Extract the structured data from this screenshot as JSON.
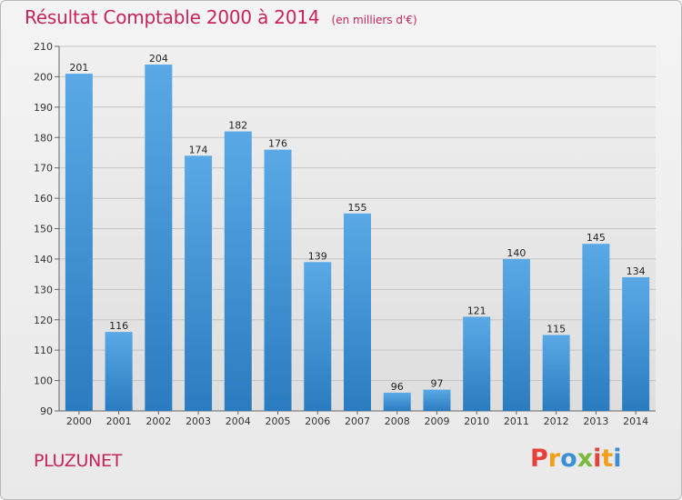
{
  "title": "Résultat Comptable 2000 à 2014",
  "subtitle": "(en milliers d'€)",
  "commune": "PLUZUNET",
  "logo": {
    "letters": [
      "P",
      "r",
      "o",
      "x",
      "i",
      "t",
      "i"
    ],
    "colors": [
      "#e8403a",
      "#f2a01c",
      "#3c8fd6",
      "#7ab93b",
      "#e8403a",
      "#f2a01c",
      "#3c8fd6"
    ]
  },
  "colors": {
    "bar": "#3b8fd4",
    "bar_dark": "#2a7fc4",
    "title": "#c8235a"
  },
  "chart_data": {
    "type": "bar",
    "title": "Résultat Comptable 2000 à 2014",
    "subtitle": "(en milliers d'€)",
    "xlabel": "",
    "ylabel": "",
    "categories": [
      "2000",
      "2001",
      "2002",
      "2003",
      "2004",
      "2005",
      "2006",
      "2007",
      "2008",
      "2009",
      "2010",
      "2011",
      "2012",
      "2013",
      "2014"
    ],
    "values": [
      201,
      116,
      204,
      174,
      182,
      176,
      139,
      155,
      96,
      97,
      121,
      140,
      115,
      145,
      134
    ],
    "ylim": [
      90,
      210
    ],
    "yticks": [
      90,
      100,
      110,
      120,
      130,
      140,
      150,
      160,
      170,
      180,
      190,
      200,
      210
    ],
    "grid": true,
    "data_labels": true
  }
}
